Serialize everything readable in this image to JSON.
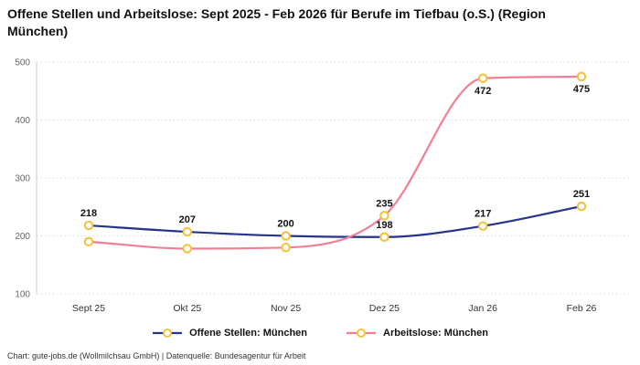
{
  "chart_data": {
    "type": "line",
    "title": "Offene Stellen und Arbeitslose: Sept 2025 - Feb 2026 für Berufe im Tiefbau (o.S.) (Region München)",
    "categories": [
      "Sept 25",
      "Okt 25",
      "Nov 25",
      "Dez 25",
      "Jan 26",
      "Feb 26"
    ],
    "series": [
      {
        "name": "Offene Stellen: München",
        "color": "#27348b",
        "values": [
          218,
          207,
          200,
          198,
          217,
          251
        ],
        "labels": [
          "218",
          "207",
          "200",
          "198",
          "217",
          "251"
        ],
        "label_positions": [
          "above",
          "above",
          "above",
          "above",
          "above",
          "above"
        ]
      },
      {
        "name": "Arbeitslose: München",
        "color": "#f07f95",
        "values": [
          190,
          178,
          180,
          235,
          472,
          475
        ],
        "labels": [
          "",
          "",
          "",
          "235",
          "472",
          "475"
        ],
        "label_positions": [
          "above",
          "above",
          "above",
          "above",
          "below",
          "below"
        ]
      }
    ],
    "marker": {
      "fill": "#ffffff",
      "stroke": "#f4c33c"
    },
    "ylim": [
      100,
      500
    ],
    "yticks": [
      100,
      200,
      300,
      400,
      500
    ],
    "xlabel": "",
    "ylabel": "",
    "grid": "dotted-horizontal",
    "legend_position": "bottom",
    "smooth": true
  },
  "footer": {
    "text": "Chart: gute-jobs.de (Wollmilchsau GmbH) | Datenquelle: Bundesagentur für Arbeit"
  }
}
